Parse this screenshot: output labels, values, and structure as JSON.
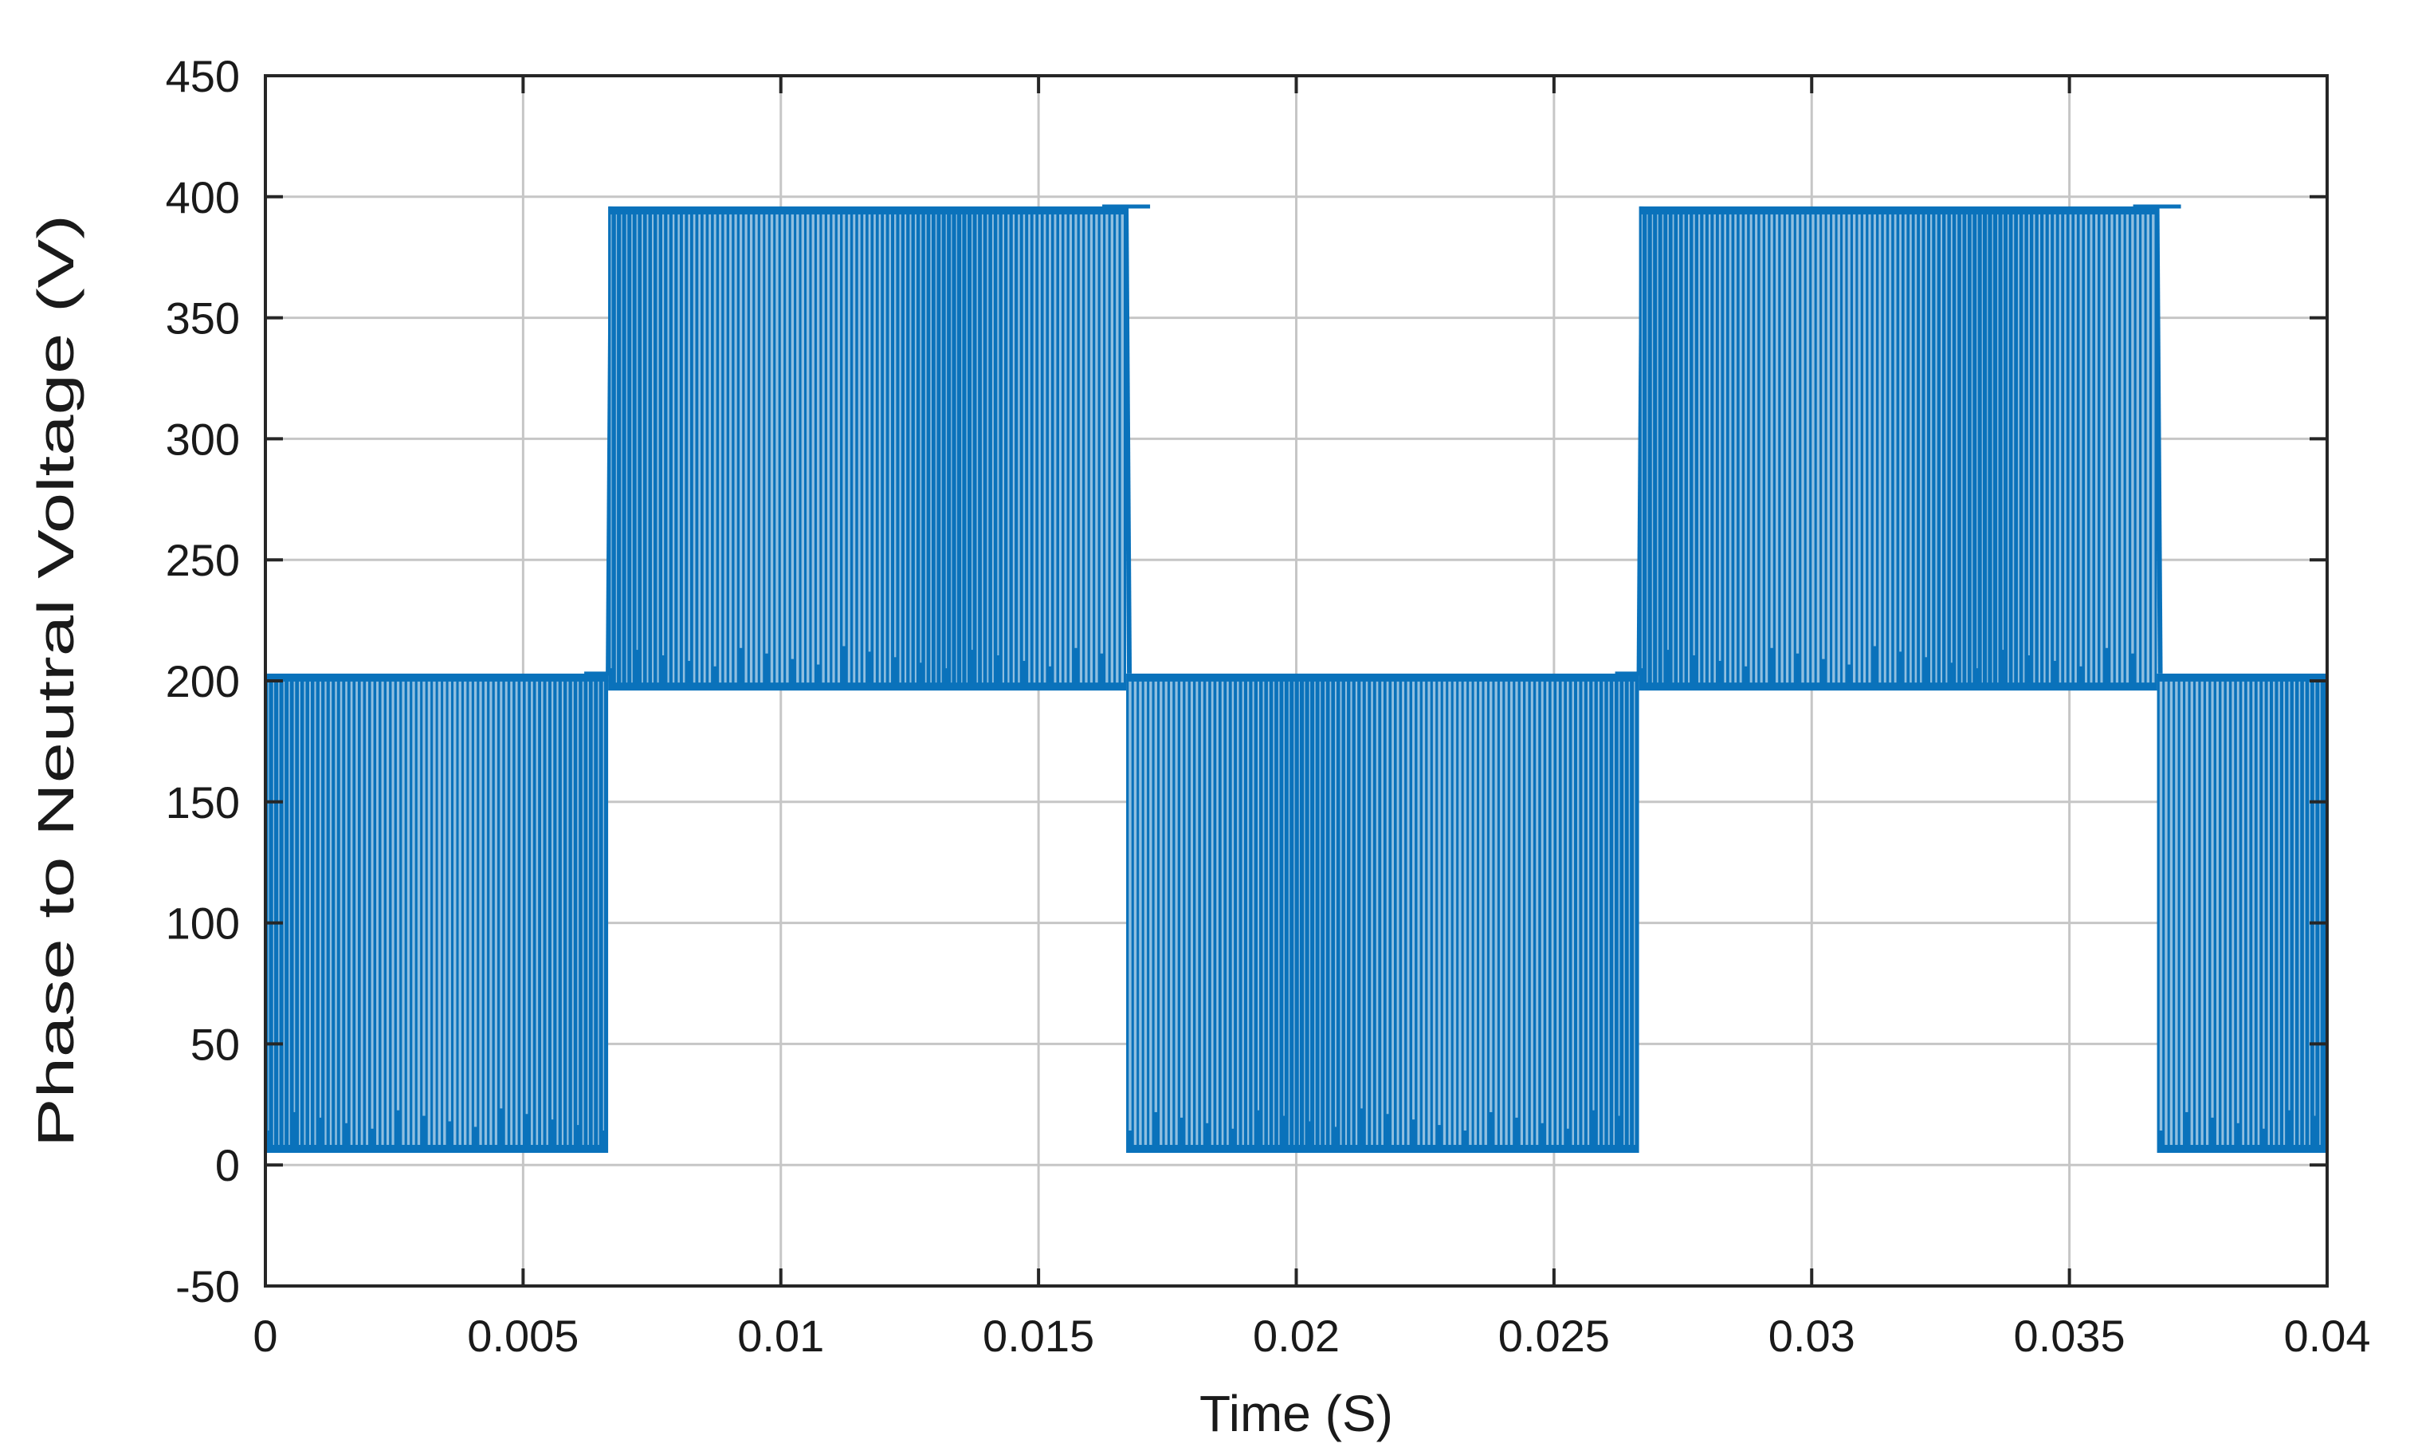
{
  "chart_data": {
    "type": "line",
    "title": "",
    "xlabel": "Time (S)",
    "ylabel": "Phase to Neutral Voltage  (V)",
    "xlim": [
      0,
      0.04
    ],
    "ylim": [
      -50,
      450
    ],
    "x_ticks": [
      0,
      0.005,
      0.01,
      0.015,
      0.02,
      0.025,
      0.03,
      0.035,
      0.04
    ],
    "x_tick_labels": [
      "0",
      "0.005",
      "0.01",
      "0.015",
      "0.02",
      "0.025",
      "0.03",
      "0.035",
      "0.04"
    ],
    "y_ticks": [
      -50,
      0,
      50,
      100,
      150,
      200,
      250,
      300,
      350,
      400,
      450
    ],
    "y_tick_labels": [
      "-50",
      "0",
      "50",
      "100",
      "150",
      "200",
      "250",
      "300",
      "350",
      "400",
      "450"
    ],
    "grid": true,
    "legend": "none",
    "series_color": "#0a72bb",
    "series": [
      {
        "segments": [
          {
            "x_start": 0.0,
            "x_end": 0.00665,
            "low": 5,
            "high": 203
          },
          {
            "x_start": 0.00665,
            "x_end": 0.0167,
            "low": 196,
            "high": 396
          },
          {
            "x_start": 0.0167,
            "x_end": 0.02665,
            "low": 5,
            "high": 203
          },
          {
            "x_start": 0.02665,
            "x_end": 0.0367,
            "low": 196,
            "high": 396
          },
          {
            "x_start": 0.0367,
            "x_end": 0.04,
            "low": 5,
            "high": 203
          }
        ],
        "switching_frequency_hz": 10000
      }
    ]
  }
}
